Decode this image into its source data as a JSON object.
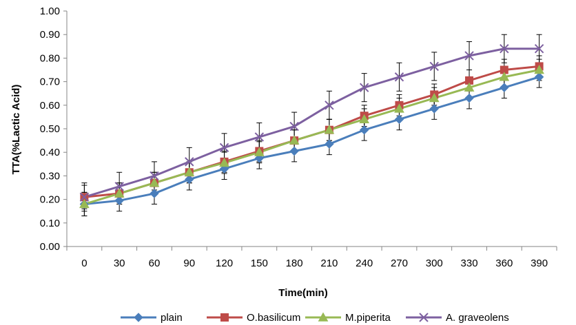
{
  "chart_data": {
    "type": "line",
    "title": "",
    "xlabel": "Time(min)",
    "ylabel": "TTA(%Lactic Acid)",
    "x": [
      0,
      30,
      60,
      90,
      120,
      150,
      180,
      210,
      240,
      270,
      300,
      330,
      360,
      390
    ],
    "ylim": [
      0,
      1.0
    ],
    "yticks": [
      "0.00",
      "0.10",
      "0.20",
      "0.30",
      "0.40",
      "0.50",
      "0.60",
      "0.70",
      "0.80",
      "0.90",
      "1.00"
    ],
    "grid": false,
    "legend_position": "bottom",
    "series": [
      {
        "name": "plain",
        "color": "#4A7EBB",
        "marker": "diamond",
        "values": [
          0.18,
          0.195,
          0.225,
          0.285,
          0.33,
          0.375,
          0.405,
          0.435,
          0.495,
          0.54,
          0.585,
          0.63,
          0.675,
          0.72
        ],
        "errors": [
          0.05,
          0.045,
          0.045,
          0.045,
          0.045,
          0.045,
          0.045,
          0.045,
          0.045,
          0.045,
          0.045,
          0.045,
          0.045,
          0.045
        ]
      },
      {
        "name": "O.basilicum",
        "color": "#BE4B48",
        "marker": "square",
        "values": [
          0.21,
          0.225,
          0.27,
          0.315,
          0.36,
          0.405,
          0.45,
          0.495,
          0.555,
          0.6,
          0.645,
          0.705,
          0.75,
          0.765
        ],
        "errors": [
          0.05,
          0.045,
          0.045,
          0.045,
          0.045,
          0.045,
          0.045,
          0.045,
          0.045,
          0.045,
          0.045,
          0.045,
          0.045,
          0.045
        ]
      },
      {
        "name": "M.piperita",
        "color": "#98B954",
        "marker": "triangle",
        "values": [
          0.18,
          0.225,
          0.27,
          0.315,
          0.355,
          0.4,
          0.45,
          0.495,
          0.54,
          0.585,
          0.63,
          0.675,
          0.72,
          0.75
        ],
        "errors": [
          0.05,
          0.045,
          0.045,
          0.045,
          0.045,
          0.045,
          0.045,
          0.045,
          0.045,
          0.045,
          0.045,
          0.045,
          0.045,
          0.045
        ]
      },
      {
        "name": "A. graveolens",
        "color": "#7D60A0",
        "marker": "x",
        "values": [
          0.21,
          0.255,
          0.3,
          0.36,
          0.42,
          0.465,
          0.51,
          0.6,
          0.675,
          0.72,
          0.765,
          0.81,
          0.84,
          0.84
        ],
        "errors": [
          0.06,
          0.06,
          0.06,
          0.06,
          0.06,
          0.06,
          0.06,
          0.06,
          0.06,
          0.06,
          0.06,
          0.06,
          0.06,
          0.06
        ]
      }
    ]
  }
}
